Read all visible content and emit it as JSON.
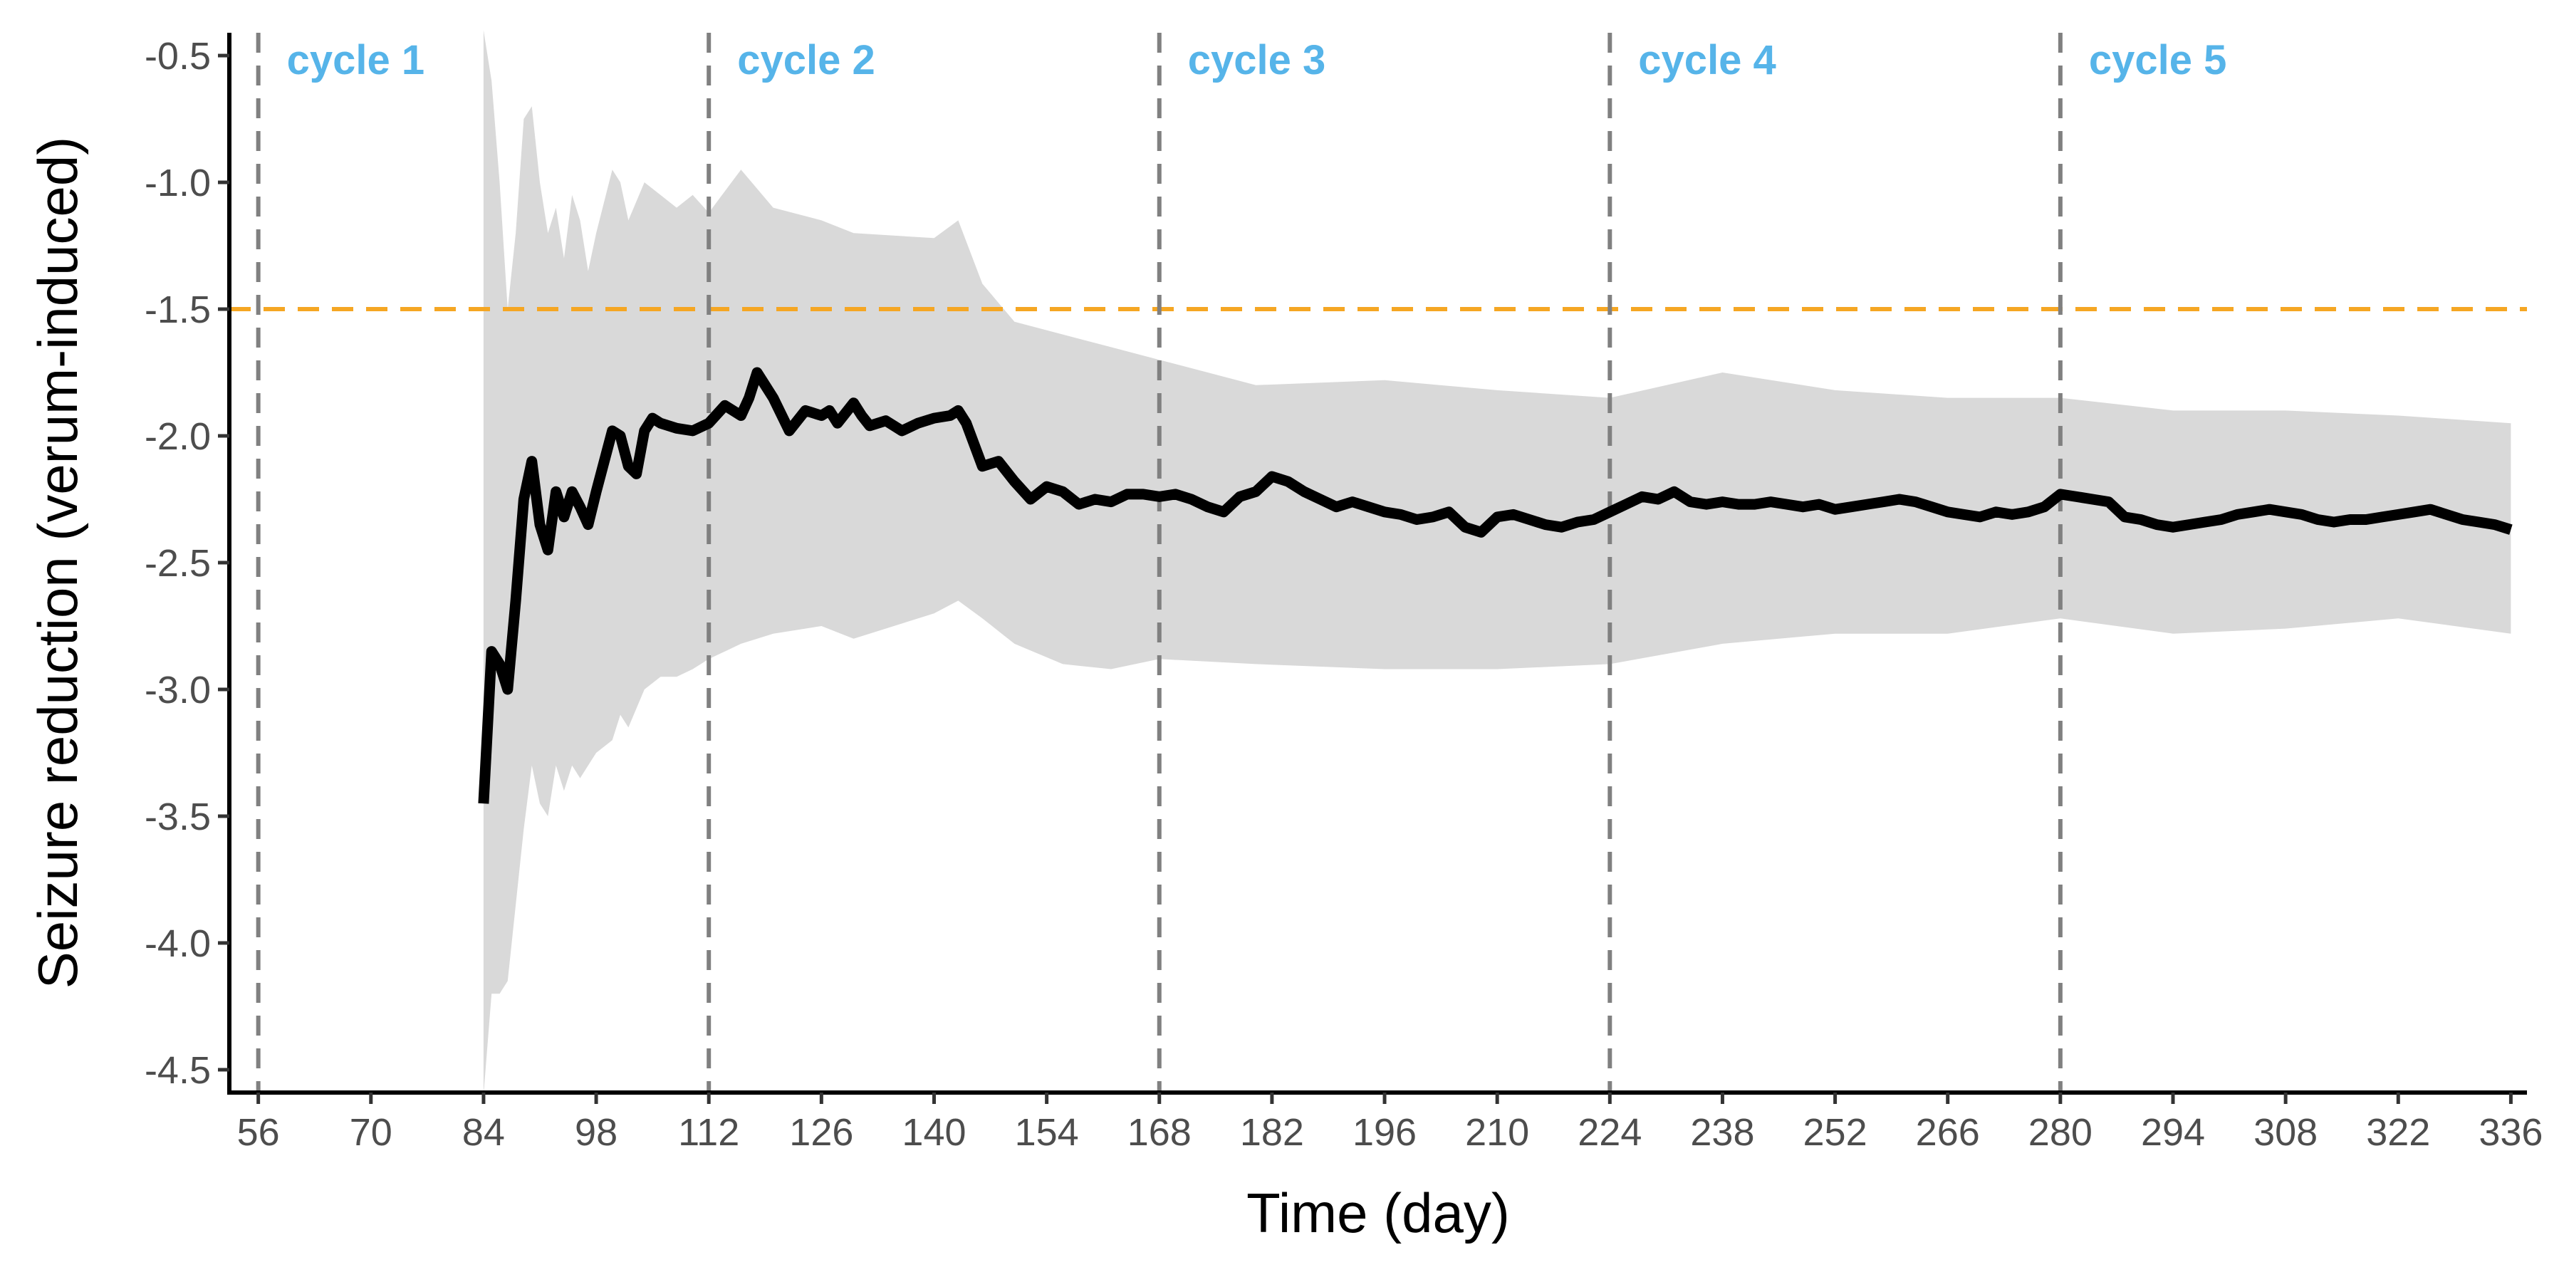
{
  "chart_data": {
    "type": "line",
    "xlabel": "Time (day)",
    "ylabel": "Seizure reduction (verum-induced)",
    "xlim": [
      52.4,
      338.0
    ],
    "ylim": [
      -4.59,
      -0.41
    ],
    "x_ticks": [
      56,
      70,
      84,
      98,
      112,
      126,
      140,
      154,
      168,
      182,
      196,
      210,
      224,
      238,
      252,
      266,
      280,
      294,
      308,
      322,
      336
    ],
    "y_ticks": [
      -0.5,
      -1.0,
      -1.5,
      -2.0,
      -2.5,
      -3.0,
      -3.5,
      -4.0,
      -4.5
    ],
    "y_tick_labels": [
      "-0.5",
      "-1.0",
      "-1.5",
      "-2.0",
      "-2.5",
      "-3.0",
      "-3.5",
      "-4.0",
      "-4.5"
    ],
    "grid": false,
    "legend": "none",
    "reference_line": {
      "y": -1.5,
      "style": "dashed",
      "color": "#F5A623"
    },
    "cycles": [
      {
        "label": "cycle 1",
        "x": 56
      },
      {
        "label": "cycle 2",
        "x": 112
      },
      {
        "label": "cycle 3",
        "x": 168
      },
      {
        "label": "cycle 4",
        "x": 224
      },
      {
        "label": "cycle 5",
        "x": 280
      }
    ],
    "colors": {
      "line": "#000000",
      "band": "#D9D9D9",
      "cycle_line": "#808080",
      "cycle_label": "#56B4E9",
      "reference": "#F5A623"
    },
    "series": [
      {
        "x": [
          84,
          85,
          86,
          87,
          88,
          89,
          90,
          91,
          92,
          93,
          94,
          95,
          96,
          97,
          98,
          99,
          100,
          101,
          102,
          103,
          104,
          105,
          106,
          108,
          110,
          112,
          114,
          116,
          117,
          118,
          119,
          120,
          122,
          124,
          126,
          127,
          128,
          130,
          131,
          132,
          134,
          136,
          138,
          140,
          142,
          143,
          144,
          146,
          148,
          150,
          152,
          154,
          156,
          158,
          160,
          162,
          164,
          166,
          168,
          170,
          172,
          174,
          176,
          178,
          180,
          182,
          184,
          186,
          188,
          190,
          192,
          194,
          196,
          198,
          200,
          202,
          204,
          206,
          208,
          210,
          212,
          214,
          216,
          218,
          220,
          222,
          224,
          226,
          228,
          230,
          232,
          234,
          236,
          238,
          240,
          242,
          244,
          246,
          248,
          250,
          252,
          254,
          256,
          258,
          260,
          262,
          264,
          266,
          268,
          270,
          272,
          274,
          276,
          278,
          280,
          282,
          284,
          286,
          288,
          290,
          292,
          294,
          296,
          298,
          300,
          302,
          304,
          306,
          308,
          310,
          312,
          314,
          316,
          318,
          320,
          322,
          324,
          326,
          328,
          330,
          332,
          334,
          336
        ],
        "y": [
          -3.45,
          -2.85,
          -2.9,
          -3.0,
          -2.65,
          -2.25,
          -2.1,
          -2.35,
          -2.45,
          -2.22,
          -2.32,
          -2.22,
          -2.28,
          -2.35,
          -2.22,
          -2.1,
          -1.98,
          -2.0,
          -2.12,
          -2.15,
          -1.98,
          -1.93,
          -1.95,
          -1.97,
          -1.98,
          -1.95,
          -1.88,
          -1.92,
          -1.85,
          -1.75,
          -1.8,
          -1.85,
          -1.98,
          -1.9,
          -1.92,
          -1.9,
          -1.95,
          -1.87,
          -1.92,
          -1.96,
          -1.94,
          -1.98,
          -1.95,
          -1.93,
          -1.92,
          -1.9,
          -1.95,
          -2.12,
          -2.1,
          -2.18,
          -2.25,
          -2.2,
          -2.22,
          -2.27,
          -2.25,
          -2.26,
          -2.23,
          -2.23,
          -2.24,
          -2.23,
          -2.25,
          -2.28,
          -2.3,
          -2.24,
          -2.22,
          -2.16,
          -2.18,
          -2.22,
          -2.25,
          -2.28,
          -2.26,
          -2.28,
          -2.3,
          -2.31,
          -2.33,
          -2.32,
          -2.3,
          -2.36,
          -2.38,
          -2.32,
          -2.31,
          -2.33,
          -2.35,
          -2.36,
          -2.34,
          -2.33,
          -2.3,
          -2.27,
          -2.24,
          -2.25,
          -2.22,
          -2.26,
          -2.27,
          -2.26,
          -2.27,
          -2.27,
          -2.26,
          -2.27,
          -2.28,
          -2.27,
          -2.29,
          -2.28,
          -2.27,
          -2.26,
          -2.25,
          -2.26,
          -2.28,
          -2.3,
          -2.31,
          -2.32,
          -2.3,
          -2.31,
          -2.3,
          -2.28,
          -2.23,
          -2.24,
          -2.25,
          -2.26,
          -2.32,
          -2.33,
          -2.35,
          -2.36,
          -2.35,
          -2.34,
          -2.33,
          -2.31,
          -2.3,
          -2.29,
          -2.3,
          -2.31,
          -2.33,
          -2.34,
          -2.33,
          -2.33,
          -2.32,
          -2.31,
          -2.3,
          -2.29,
          -2.31,
          -2.33,
          -2.34,
          -2.35,
          -2.37
        ]
      }
    ],
    "band": {
      "x": [
        84,
        85,
        86,
        87,
        88,
        89,
        90,
        91,
        92,
        93,
        94,
        95,
        96,
        97,
        98,
        100,
        101,
        102,
        104,
        106,
        108,
        110,
        112,
        116,
        120,
        126,
        130,
        140,
        143,
        146,
        150,
        156,
        162,
        168,
        180,
        196,
        210,
        224,
        238,
        252,
        266,
        280,
        294,
        308,
        322,
        336
      ],
      "lower": [
        -4.6,
        -4.2,
        -4.2,
        -4.15,
        -3.85,
        -3.55,
        -3.3,
        -3.45,
        -3.5,
        -3.3,
        -3.4,
        -3.3,
        -3.35,
        -3.3,
        -3.25,
        -3.2,
        -3.1,
        -3.15,
        -3.0,
        -2.95,
        -2.95,
        -2.92,
        -2.88,
        -2.82,
        -2.78,
        -2.75,
        -2.8,
        -2.7,
        -2.65,
        -2.72,
        -2.82,
        -2.9,
        -2.92,
        -2.88,
        -2.9,
        -2.92,
        -2.92,
        -2.9,
        -2.82,
        -2.78,
        -2.78,
        -2.72,
        -2.78,
        -2.76,
        -2.72,
        -2.78
      ],
      "upper": [
        -0.4,
        -0.6,
        -1.0,
        -1.5,
        -1.2,
        -0.75,
        -0.7,
        -1.0,
        -1.2,
        -1.1,
        -1.3,
        -1.05,
        -1.15,
        -1.35,
        -1.2,
        -0.95,
        -1.0,
        -1.15,
        -1.0,
        -1.05,
        -1.1,
        -1.05,
        -1.12,
        -0.95,
        -1.1,
        -1.15,
        -1.2,
        -1.22,
        -1.15,
        -1.4,
        -1.55,
        -1.6,
        -1.65,
        -1.7,
        -1.8,
        -1.78,
        -1.82,
        -1.85,
        -1.75,
        -1.82,
        -1.85,
        -1.85,
        -1.9,
        -1.9,
        -1.92,
        -1.95
      ]
    }
  }
}
